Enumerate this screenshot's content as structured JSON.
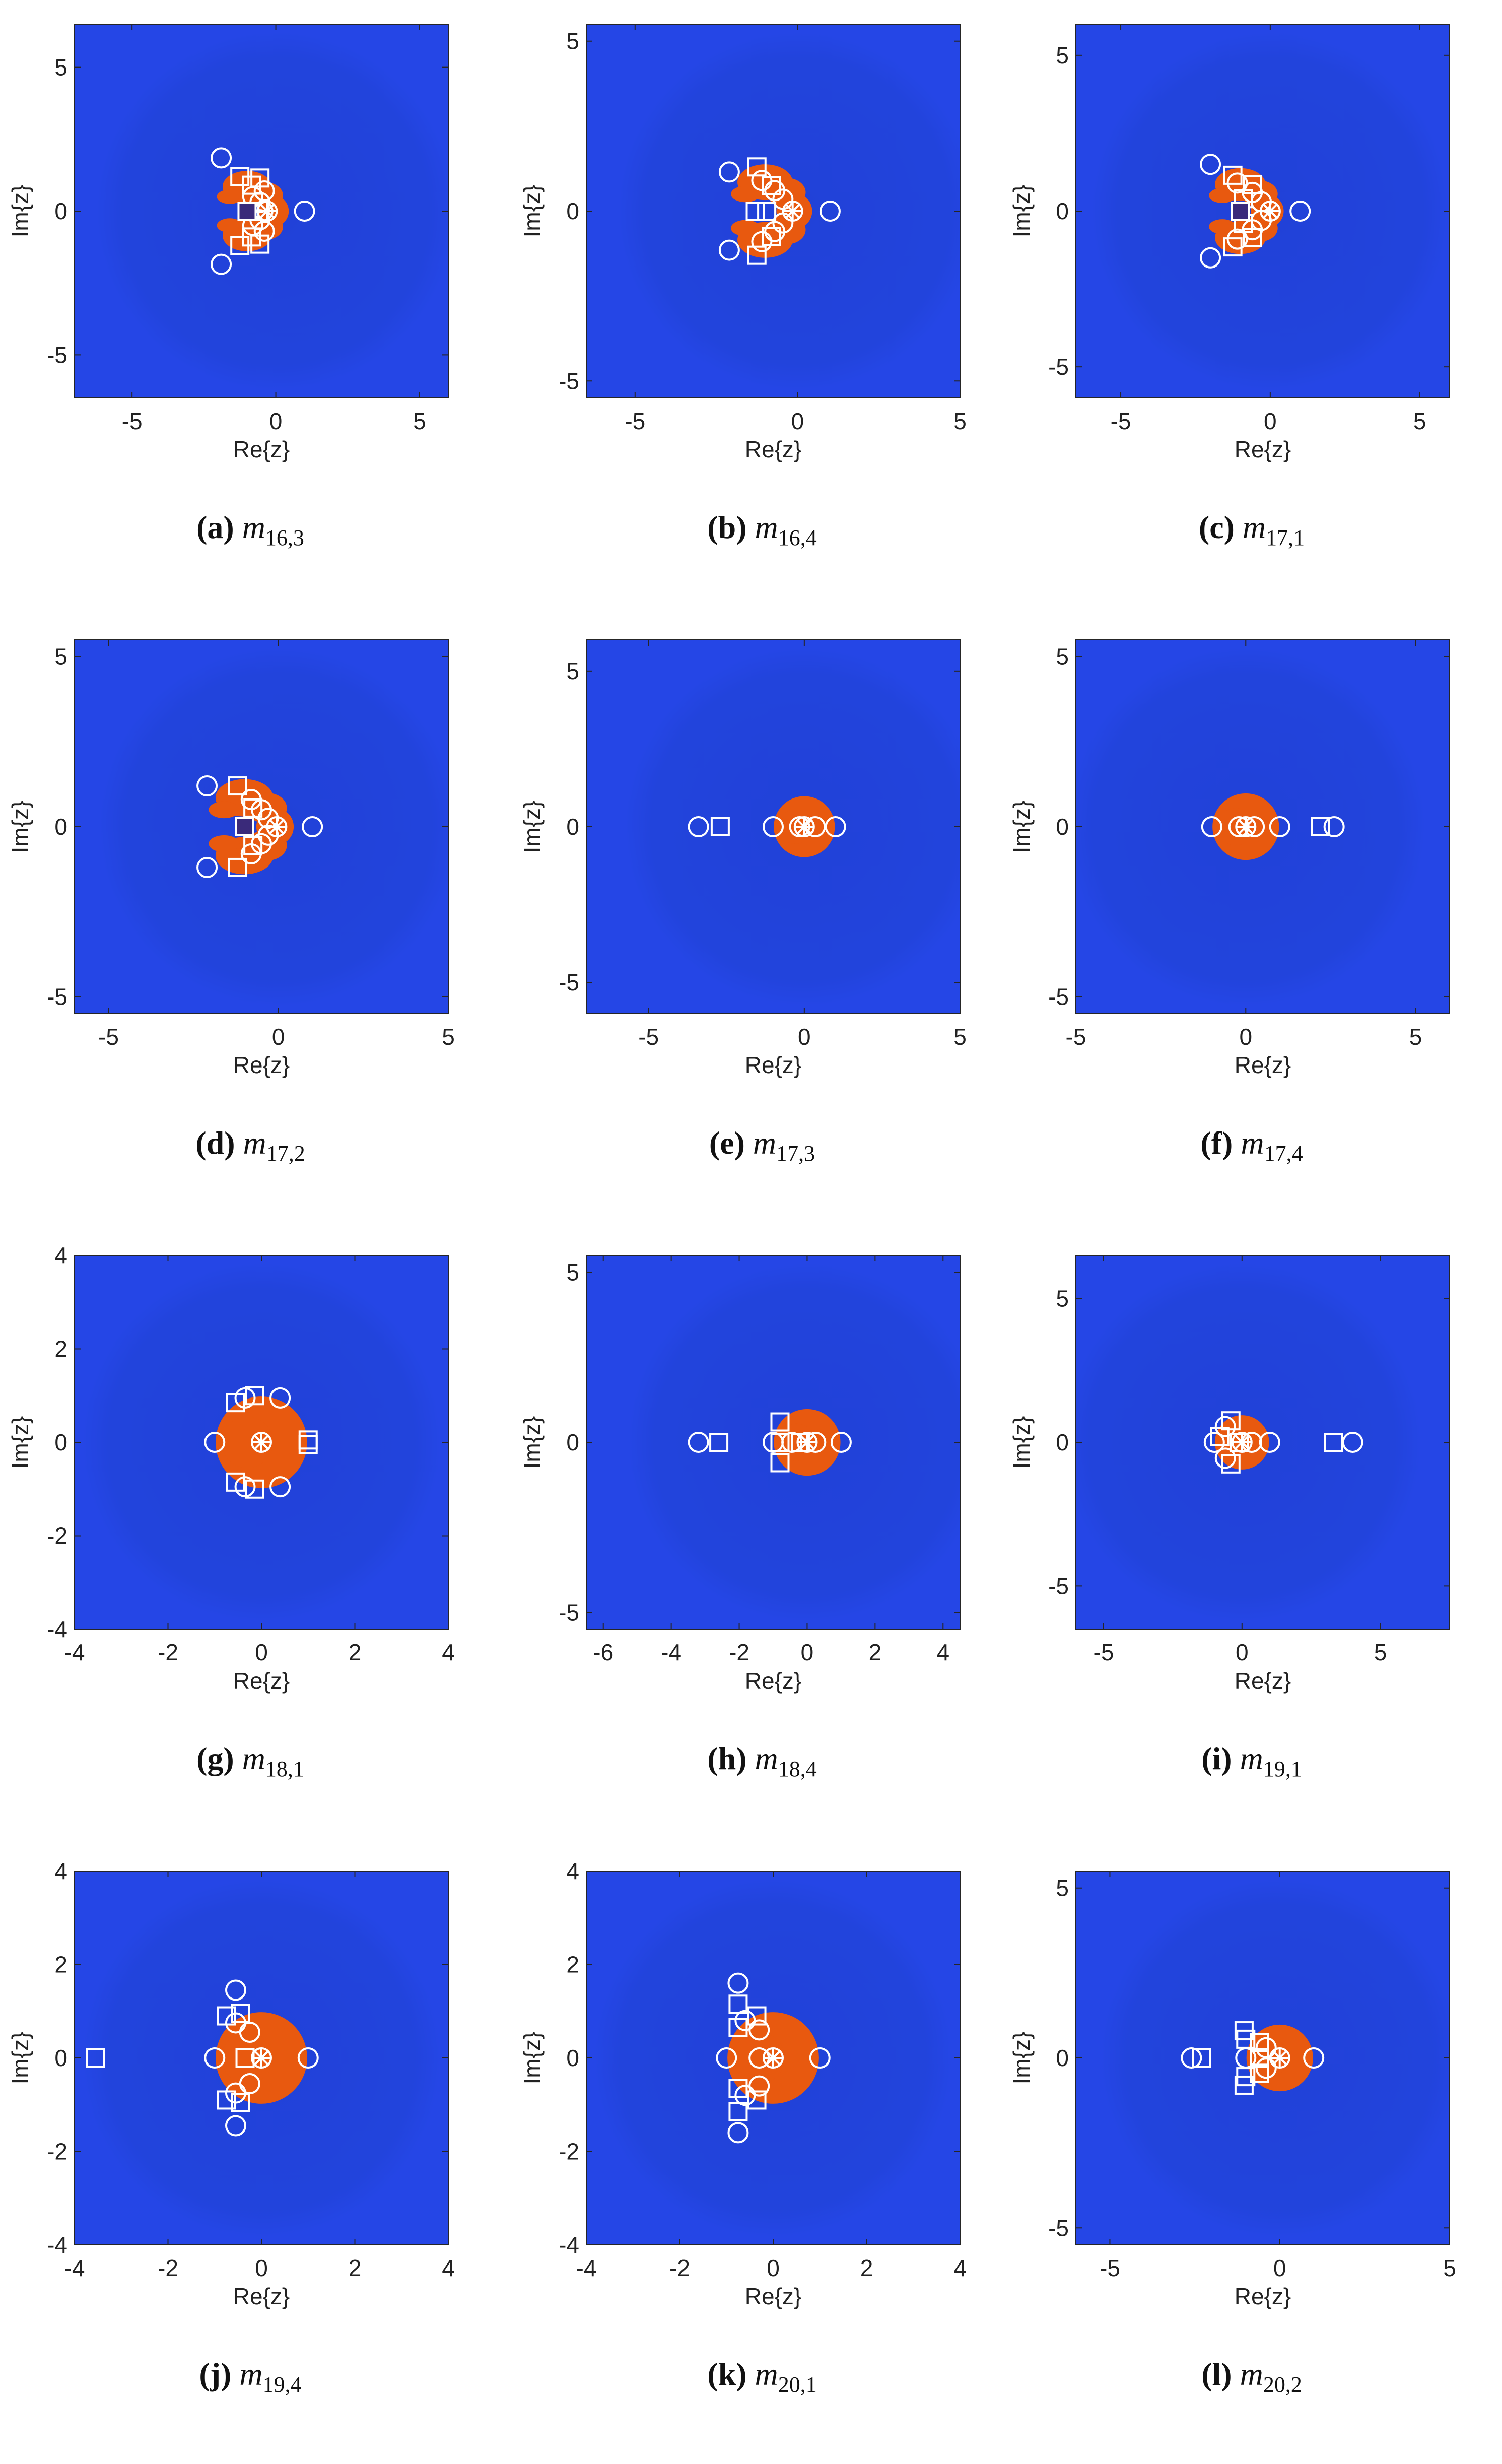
{
  "colors": {
    "background": "#2546e6",
    "set": "#e8590f",
    "fractal_dark": "#3a2a7a",
    "marker": "#ffffff"
  },
  "chart_data": [
    {
      "type": "scatter",
      "tag": "a",
      "var": "m",
      "sub": "16,3",
      "xlabel": "Re{z}",
      "ylabel": "Im{z}",
      "xlim": [
        -7,
        6
      ],
      "ylim": [
        -6.5,
        6.5
      ],
      "xticks": [
        -5,
        0,
        5
      ],
      "yticks": [
        -5,
        0,
        5
      ],
      "set_shape": "two_lobes",
      "circles": [
        [
          1,
          0
        ],
        [
          -1.9,
          1.85
        ],
        [
          -1.9,
          -1.85
        ],
        [
          -0.4,
          0.7
        ],
        [
          -0.4,
          -0.7
        ],
        [
          -0.8,
          0.5
        ],
        [
          -0.8,
          -0.5
        ],
        [
          -0.55,
          0.3
        ],
        [
          -0.55,
          -0.3
        ],
        [
          -0.45,
          0
        ]
      ],
      "squares": [
        [
          -1.25,
          1.2
        ],
        [
          -1.25,
          -1.2
        ],
        [
          -0.55,
          1.15
        ],
        [
          -0.55,
          -1.15
        ],
        [
          -0.9,
          0
        ],
        [
          -0.85,
          0.9
        ],
        [
          -0.85,
          -0.9
        ]
      ],
      "filled_squares": [
        [
          -1.0,
          0
        ]
      ],
      "stars": [
        [
          -0.3,
          0
        ]
      ]
    },
    {
      "type": "scatter",
      "tag": "b",
      "var": "m",
      "sub": "16,4",
      "xlabel": "Re{z}",
      "ylabel": "Im{z}",
      "xlim": [
        -6.5,
        5
      ],
      "ylim": [
        -5.5,
        5.5
      ],
      "xticks": [
        -5,
        0,
        5
      ],
      "yticks": [
        -5,
        0,
        5
      ],
      "set_shape": "two_lobes",
      "circles": [
        [
          1,
          0
        ],
        [
          -2.1,
          1.15
        ],
        [
          -2.1,
          -1.15
        ],
        [
          -1.1,
          0.9
        ],
        [
          -1.1,
          -0.9
        ],
        [
          -0.7,
          0.6
        ],
        [
          -0.7,
          -0.6
        ],
        [
          -0.45,
          0.35
        ],
        [
          -0.45,
          -0.35
        ]
      ],
      "squares": [
        [
          -1.25,
          1.3
        ],
        [
          -1.25,
          -1.3
        ],
        [
          -1.3,
          0
        ],
        [
          -0.95,
          0
        ],
        [
          -0.8,
          0.75
        ],
        [
          -0.8,
          -0.75
        ]
      ],
      "filled_squares": [],
      "stars": [
        [
          -0.15,
          0
        ]
      ]
    },
    {
      "type": "scatter",
      "tag": "c",
      "var": "m",
      "sub": "17,1",
      "xlabel": "Re{z}",
      "ylabel": "Im{z}",
      "xlim": [
        -6.5,
        6
      ],
      "ylim": [
        -6,
        6
      ],
      "xticks": [
        -5,
        0,
        5
      ],
      "yticks": [
        -5,
        0,
        5
      ],
      "set_shape": "two_lobes",
      "circles": [
        [
          1,
          0
        ],
        [
          -2.0,
          1.5
        ],
        [
          -2.0,
          -1.5
        ],
        [
          -1.1,
          0.9
        ],
        [
          -1.1,
          -0.9
        ],
        [
          -0.6,
          0.6
        ],
        [
          -0.6,
          -0.6
        ],
        [
          -0.3,
          0.3
        ],
        [
          -0.3,
          -0.3
        ]
      ],
      "squares": [
        [
          -1.25,
          1.15
        ],
        [
          -1.25,
          -1.15
        ],
        [
          -0.6,
          0.85
        ],
        [
          -0.6,
          -0.85
        ],
        [
          -0.9,
          0.4
        ],
        [
          -0.9,
          -0.4
        ]
      ],
      "filled_squares": [
        [
          -1.0,
          0
        ]
      ],
      "stars": [
        [
          0,
          0
        ]
      ]
    },
    {
      "type": "scatter",
      "tag": "d",
      "var": "m",
      "sub": "17,2",
      "xlabel": "Re{z}",
      "ylabel": "Im{z}",
      "xlim": [
        -6,
        5
      ],
      "ylim": [
        -5.5,
        5.5
      ],
      "xticks": [
        -5,
        0,
        5
      ],
      "yticks": [
        -5,
        0,
        5
      ],
      "set_shape": "two_lobes",
      "circles": [
        [
          1,
          0
        ],
        [
          -2.1,
          1.2
        ],
        [
          -2.1,
          -1.2
        ],
        [
          -0.8,
          0.8
        ],
        [
          -0.8,
          -0.8
        ],
        [
          -0.5,
          0.5
        ],
        [
          -0.5,
          -0.5
        ],
        [
          -0.3,
          0.25
        ],
        [
          -0.3,
          -0.25
        ]
      ],
      "squares": [
        [
          -1.2,
          1.2
        ],
        [
          -1.2,
          -1.2
        ],
        [
          -0.75,
          0.55
        ],
        [
          -0.75,
          -0.55
        ]
      ],
      "filled_squares": [
        [
          -1.0,
          0
        ]
      ],
      "stars": [
        [
          -0.05,
          0
        ]
      ]
    },
    {
      "type": "scatter",
      "tag": "e",
      "var": "m",
      "sub": "17,3",
      "xlabel": "Re{z}",
      "ylabel": "Im{z}",
      "xlim": [
        -7,
        5
      ],
      "ylim": [
        -6,
        6
      ],
      "xticks": [
        -5,
        0,
        5
      ],
      "yticks": [
        -5,
        0,
        5
      ],
      "set_shape": "disk",
      "circles": [
        [
          -3.4,
          0
        ],
        [
          -1,
          0
        ],
        [
          -0.15,
          0
        ],
        [
          0.35,
          0
        ],
        [
          1,
          0
        ]
      ],
      "squares": [
        [
          -2.7,
          0
        ]
      ],
      "filled_squares": [],
      "stars": [
        [
          0,
          0
        ]
      ]
    },
    {
      "type": "scatter",
      "tag": "f",
      "var": "m",
      "sub": "17,4",
      "xlabel": "Re{z}",
      "ylabel": "Im{z}",
      "xlim": [
        -5,
        6
      ],
      "ylim": [
        -5.5,
        5.5
      ],
      "xticks": [
        -5,
        0,
        5
      ],
      "yticks": [
        -5,
        0,
        5
      ],
      "set_shape": "disk",
      "circles": [
        [
          -1,
          0
        ],
        [
          -0.2,
          0
        ],
        [
          0.25,
          0
        ],
        [
          1,
          0
        ],
        [
          2.6,
          0
        ]
      ],
      "squares": [
        [
          2.2,
          0
        ]
      ],
      "filled_squares": [],
      "stars": [
        [
          0,
          0
        ]
      ]
    },
    {
      "type": "scatter",
      "tag": "g",
      "var": "m",
      "sub": "18,1",
      "xlabel": "Re{z}",
      "ylabel": "Im{z}",
      "xlim": [
        -4,
        4
      ],
      "ylim": [
        -4,
        4
      ],
      "xticks": [
        -4,
        -2,
        0,
        2,
        4
      ],
      "yticks": [
        -4,
        -2,
        0,
        2,
        4
      ],
      "set_shape": "disk",
      "circles": [
        [
          -1,
          0
        ],
        [
          -0.35,
          0.95
        ],
        [
          -0.35,
          -0.95
        ],
        [
          0.4,
          0.95
        ],
        [
          0.4,
          -0.95
        ]
      ],
      "squares": [
        [
          -0.55,
          0.85
        ],
        [
          -0.55,
          -0.85
        ],
        [
          -0.15,
          1.0
        ],
        [
          -0.15,
          -1.0
        ],
        [
          1.0,
          0.05
        ],
        [
          1.0,
          -0.05
        ]
      ],
      "filled_squares": [],
      "stars": [
        [
          0,
          0
        ]
      ]
    },
    {
      "type": "scatter",
      "tag": "h",
      "var": "m",
      "sub": "18,4",
      "xlabel": "Re{z}",
      "ylabel": "Im{z}",
      "xlim": [
        -6.5,
        4.5
      ],
      "ylim": [
        -5.5,
        5.5
      ],
      "xticks": [
        -6,
        -4,
        -2,
        0,
        2,
        4
      ],
      "yticks": [
        -5,
        0,
        5
      ],
      "set_shape": "disk",
      "circles": [
        [
          -3.2,
          0
        ],
        [
          -1,
          0
        ],
        [
          -0.45,
          0
        ],
        [
          0.25,
          0
        ],
        [
          1,
          0
        ]
      ],
      "squares": [
        [
          -2.6,
          0
        ],
        [
          -0.8,
          0.6
        ],
        [
          -0.8,
          -0.6
        ],
        [
          -0.8,
          0
        ],
        [
          -0.2,
          0
        ]
      ],
      "filled_squares": [],
      "stars": [
        [
          0,
          0
        ]
      ]
    },
    {
      "type": "scatter",
      "tag": "i",
      "var": "m",
      "sub": "19,1",
      "xlabel": "Re{z}",
      "ylabel": "Im{z}",
      "xlim": [
        -6,
        7.5
      ],
      "ylim": [
        -6.5,
        6.5
      ],
      "xticks": [
        -5,
        0,
        5
      ],
      "yticks": [
        -5,
        0,
        5
      ],
      "set_shape": "disk",
      "circles": [
        [
          -1,
          0
        ],
        [
          -0.6,
          0.55
        ],
        [
          -0.6,
          -0.55
        ],
        [
          0.35,
          0
        ],
        [
          1,
          0
        ],
        [
          4.0,
          0
        ]
      ],
      "squares": [
        [
          -0.4,
          0.75
        ],
        [
          -0.4,
          -0.75
        ],
        [
          -0.8,
          0.2
        ],
        [
          -0.1,
          0
        ],
        [
          3.3,
          0
        ]
      ],
      "filled_squares": [],
      "stars": [
        [
          0,
          0
        ]
      ]
    },
    {
      "type": "scatter",
      "tag": "j",
      "var": "m",
      "sub": "19,4",
      "xlabel": "Re{z}",
      "ylabel": "Im{z}",
      "xlim": [
        -4,
        4
      ],
      "ylim": [
        -4,
        4
      ],
      "xticks": [
        -4,
        -2,
        0,
        2,
        4
      ],
      "yticks": [
        -4,
        -2,
        0,
        2,
        4
      ],
      "set_shape": "disk",
      "circles": [
        [
          -1,
          0
        ],
        [
          1,
          0
        ],
        [
          -0.55,
          1.45
        ],
        [
          -0.55,
          -1.45
        ],
        [
          -0.55,
          0.75
        ],
        [
          -0.55,
          -0.75
        ],
        [
          -0.25,
          0.55
        ],
        [
          -0.25,
          -0.55
        ]
      ],
      "squares": [
        [
          -3.55,
          0
        ],
        [
          -0.75,
          0.9
        ],
        [
          -0.75,
          -0.9
        ],
        [
          -0.45,
          0.95
        ],
        [
          -0.45,
          -0.95
        ],
        [
          -0.35,
          0
        ]
      ],
      "filled_squares": [],
      "stars": [
        [
          0,
          0
        ]
      ]
    },
    {
      "type": "scatter",
      "tag": "k",
      "var": "m",
      "sub": "20,1",
      "xlabel": "Re{z}",
      "ylabel": "Im{z}",
      "xlim": [
        -4,
        4
      ],
      "ylim": [
        -4,
        4
      ],
      "xticks": [
        -4,
        -2,
        0,
        2,
        4
      ],
      "yticks": [
        -4,
        -2,
        0,
        2,
        4
      ],
      "set_shape": "disk",
      "circles": [
        [
          -1,
          0
        ],
        [
          1,
          0
        ],
        [
          -0.75,
          1.6
        ],
        [
          -0.75,
          -1.6
        ],
        [
          -0.6,
          0.8
        ],
        [
          -0.6,
          -0.8
        ],
        [
          -0.3,
          0.6
        ],
        [
          -0.3,
          -0.6
        ],
        [
          -0.3,
          0
        ]
      ],
      "squares": [
        [
          -0.75,
          1.15
        ],
        [
          -0.75,
          -1.15
        ],
        [
          -0.35,
          0.9
        ],
        [
          -0.35,
          -0.9
        ],
        [
          -0.75,
          0.65
        ],
        [
          -0.75,
          -0.65
        ]
      ],
      "filled_squares": [],
      "stars": [
        [
          0,
          0
        ]
      ]
    },
    {
      "type": "scatter",
      "tag": "l",
      "var": "m",
      "sub": "20,2",
      "xlabel": "Re{z}",
      "ylabel": "Im{z}",
      "xlim": [
        -6,
        5
      ],
      "ylim": [
        -5.5,
        5.5
      ],
      "xticks": [
        -5,
        0,
        5
      ],
      "yticks": [
        -5,
        0,
        5
      ],
      "set_shape": "disk",
      "circles": [
        [
          -2.6,
          0
        ],
        [
          -1,
          0
        ],
        [
          1,
          0
        ],
        [
          -0.4,
          0.3
        ],
        [
          -0.4,
          -0.3
        ]
      ],
      "squares": [
        [
          -2.3,
          0
        ],
        [
          -1.05,
          0.8
        ],
        [
          -1.05,
          -0.8
        ],
        [
          -1.0,
          0.55
        ],
        [
          -1.0,
          -0.55
        ],
        [
          -0.6,
          0
        ],
        [
          -0.6,
          0.45
        ],
        [
          -0.6,
          -0.45
        ]
      ],
      "filled_squares": [],
      "stars": [
        [
          0,
          0
        ]
      ]
    }
  ]
}
